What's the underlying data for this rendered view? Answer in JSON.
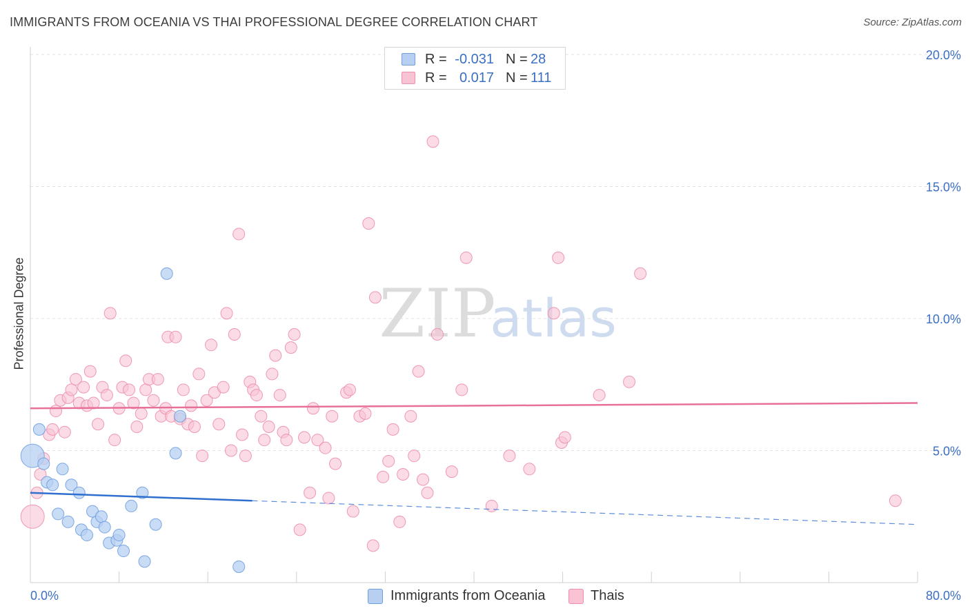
{
  "header": {
    "title": "IMMIGRANTS FROM OCEANIA VS THAI PROFESSIONAL DEGREE CORRELATION CHART",
    "source": "Source: ZipAtlas.com"
  },
  "watermark": {
    "zip": "ZIP",
    "atlas": "atlas"
  },
  "legend": {
    "r_label": "R =",
    "n_label": "N =",
    "rows": [
      {
        "name": "Immigrants from Oceania",
        "r": "-0.031",
        "n": "28",
        "fill": "#b7d0f2",
        "stroke": "#6f9fe0"
      },
      {
        "name": "Thais",
        "r": "0.017",
        "n": "111",
        "fill": "#f9c3d3",
        "stroke": "#ec8ead"
      }
    ]
  },
  "bottom_legend": {
    "items": [
      "Immigrants from Oceania",
      "Thais"
    ]
  },
  "colors": {
    "blue_fill": "#b7d0f2",
    "blue_stroke": "#6f9fe0",
    "blue_line": "#2f6fcf",
    "pink_fill": "#f9c3d3",
    "pink_stroke": "#ec8ead",
    "pink_line": "#e7709a",
    "axis_label": "#3a6fc4",
    "grid": "#e2e2e2"
  },
  "chart_data": {
    "type": "scatter",
    "title": "IMMIGRANTS FROM OCEANIA VS THAI PROFESSIONAL DEGREE CORRELATION CHART",
    "xlabel": "",
    "ylabel": "Professional Degree",
    "xlim": [
      0,
      80
    ],
    "ylim": [
      0,
      20
    ],
    "x_tick_labels": [
      {
        "value": 0,
        "label": "0.0%"
      },
      {
        "value": 80,
        "label": "80.0%"
      }
    ],
    "y_tick_labels": [
      {
        "value": 5,
        "label": "5.0%"
      },
      {
        "value": 10,
        "label": "10.0%"
      },
      {
        "value": 15,
        "label": "15.0%"
      },
      {
        "value": 20,
        "label": "20.0%"
      }
    ],
    "grid": true,
    "series": [
      {
        "name": "Immigrants from Oceania",
        "r": -0.031,
        "n": 28,
        "trend": {
          "solid": [
            [
              0,
              3.4
            ],
            [
              20,
              3.1
            ]
          ],
          "dashed": [
            [
              20,
              3.1
            ],
            [
              80,
              2.2
            ]
          ]
        },
        "points": [
          [
            0.2,
            4.8,
            1
          ],
          [
            0.8,
            5.8,
            0
          ],
          [
            1.2,
            4.5,
            0
          ],
          [
            1.5,
            3.8,
            0
          ],
          [
            2.0,
            3.7,
            0
          ],
          [
            2.5,
            2.6,
            0
          ],
          [
            2.9,
            4.3,
            0
          ],
          [
            3.4,
            2.3,
            0
          ],
          [
            3.7,
            3.7,
            0
          ],
          [
            4.4,
            3.4,
            0
          ],
          [
            4.6,
            2.0,
            0
          ],
          [
            5.1,
            1.8,
            0
          ],
          [
            5.6,
            2.7,
            0
          ],
          [
            6.0,
            2.3,
            0
          ],
          [
            6.4,
            2.5,
            0
          ],
          [
            6.7,
            2.1,
            0
          ],
          [
            7.1,
            1.5,
            0
          ],
          [
            7.8,
            1.6,
            0
          ],
          [
            8.0,
            1.8,
            0
          ],
          [
            8.4,
            1.2,
            0
          ],
          [
            9.1,
            2.9,
            0
          ],
          [
            10.1,
            3.4,
            0
          ],
          [
            10.3,
            0.8,
            0
          ],
          [
            11.3,
            2.2,
            0
          ],
          [
            12.3,
            11.7,
            0
          ],
          [
            13.1,
            4.9,
            0
          ],
          [
            13.5,
            6.3,
            0
          ],
          [
            18.8,
            0.6,
            0
          ]
        ]
      },
      {
        "name": "Thais",
        "r": 0.017,
        "n": 111,
        "trend": {
          "solid": [
            [
              0,
              6.6
            ],
            [
              80,
              6.8
            ]
          ]
        },
        "points": [
          [
            0.2,
            2.5,
            1
          ],
          [
            0.6,
            3.4,
            0
          ],
          [
            0.9,
            4.1,
            0
          ],
          [
            1.2,
            4.7,
            0
          ],
          [
            1.7,
            5.6,
            0
          ],
          [
            2.0,
            5.8,
            0
          ],
          [
            2.3,
            6.5,
            0
          ],
          [
            2.7,
            6.9,
            0
          ],
          [
            3.1,
            5.7,
            0
          ],
          [
            3.4,
            7.0,
            0
          ],
          [
            3.7,
            7.3,
            0
          ],
          [
            4.1,
            7.7,
            0
          ],
          [
            4.4,
            6.8,
            0
          ],
          [
            4.8,
            7.4,
            0
          ],
          [
            5.1,
            6.7,
            0
          ],
          [
            5.4,
            8.0,
            0
          ],
          [
            5.7,
            6.8,
            0
          ],
          [
            6.1,
            6.0,
            0
          ],
          [
            6.5,
            7.4,
            0
          ],
          [
            6.9,
            7.1,
            0
          ],
          [
            7.2,
            10.2,
            0
          ],
          [
            7.6,
            5.4,
            0
          ],
          [
            8.0,
            6.6,
            0
          ],
          [
            8.3,
            7.4,
            0
          ],
          [
            8.6,
            8.4,
            0
          ],
          [
            8.9,
            7.3,
            0
          ],
          [
            9.3,
            6.8,
            0
          ],
          [
            9.6,
            5.9,
            0
          ],
          [
            10.0,
            6.4,
            0
          ],
          [
            10.4,
            7.3,
            0
          ],
          [
            10.7,
            7.7,
            0
          ],
          [
            11.1,
            6.9,
            0
          ],
          [
            11.5,
            7.7,
            0
          ],
          [
            11.8,
            6.3,
            0
          ],
          [
            12.2,
            6.6,
            0
          ],
          [
            12.4,
            9.3,
            0
          ],
          [
            12.7,
            6.3,
            0
          ],
          [
            13.1,
            9.3,
            0
          ],
          [
            13.5,
            6.2,
            0
          ],
          [
            13.8,
            7.3,
            0
          ],
          [
            14.2,
            6.0,
            0
          ],
          [
            14.5,
            6.7,
            0
          ],
          [
            14.8,
            5.9,
            0
          ],
          [
            15.2,
            7.9,
            0
          ],
          [
            15.5,
            4.8,
            0
          ],
          [
            15.9,
            6.9,
            0
          ],
          [
            16.3,
            9.0,
            0
          ],
          [
            16.6,
            7.2,
            0
          ],
          [
            17.0,
            6.0,
            0
          ],
          [
            17.4,
            7.4,
            0
          ],
          [
            17.7,
            10.2,
            0
          ],
          [
            18.1,
            5.0,
            0
          ],
          [
            18.4,
            9.4,
            0
          ],
          [
            18.8,
            13.2,
            0
          ],
          [
            19.1,
            5.6,
            0
          ],
          [
            19.4,
            4.8,
            0
          ],
          [
            19.8,
            7.6,
            0
          ],
          [
            20.1,
            7.3,
            0
          ],
          [
            20.4,
            7.1,
            0
          ],
          [
            20.8,
            6.3,
            0
          ],
          [
            21.1,
            5.4,
            0
          ],
          [
            21.5,
            5.9,
            0
          ],
          [
            21.8,
            7.9,
            0
          ],
          [
            22.1,
            8.6,
            0
          ],
          [
            22.5,
            7.1,
            0
          ],
          [
            22.8,
            5.7,
            0
          ],
          [
            23.1,
            5.4,
            0
          ],
          [
            23.5,
            8.9,
            0
          ],
          [
            23.8,
            9.4,
            0
          ],
          [
            24.3,
            2.0,
            0
          ],
          [
            24.7,
            5.5,
            0
          ],
          [
            25.2,
            3.4,
            0
          ],
          [
            25.5,
            6.6,
            0
          ],
          [
            25.9,
            5.4,
            0
          ],
          [
            26.6,
            5.1,
            0
          ],
          [
            26.9,
            3.2,
            0
          ],
          [
            27.2,
            6.3,
            0
          ],
          [
            27.5,
            4.5,
            0
          ],
          [
            28.5,
            7.2,
            0
          ],
          [
            28.8,
            7.3,
            0
          ],
          [
            29.1,
            2.7,
            0
          ],
          [
            29.7,
            6.3,
            0
          ],
          [
            30.2,
            6.4,
            0
          ],
          [
            30.5,
            13.6,
            0
          ],
          [
            30.9,
            1.4,
            0
          ],
          [
            31.1,
            10.8,
            0
          ],
          [
            31.8,
            4.0,
            0
          ],
          [
            32.3,
            4.6,
            0
          ],
          [
            32.7,
            5.8,
            0
          ],
          [
            33.3,
            2.3,
            0
          ],
          [
            33.6,
            4.1,
            0
          ],
          [
            34.3,
            6.3,
            0
          ],
          [
            34.6,
            4.8,
            0
          ],
          [
            35.0,
            8.0,
            0
          ],
          [
            35.4,
            3.9,
            0
          ],
          [
            35.8,
            3.4,
            0
          ],
          [
            36.3,
            16.7,
            0
          ],
          [
            36.7,
            9.4,
            0
          ],
          [
            38.0,
            4.2,
            0
          ],
          [
            38.9,
            7.3,
            0
          ],
          [
            39.3,
            12.3,
            0
          ],
          [
            41.6,
            2.9,
            0
          ],
          [
            43.2,
            4.8,
            0
          ],
          [
            45.0,
            4.3,
            0
          ],
          [
            47.2,
            10.2,
            0
          ],
          [
            47.6,
            12.3,
            0
          ],
          [
            47.9,
            5.3,
            0
          ],
          [
            48.2,
            5.5,
            0
          ],
          [
            51.3,
            7.1,
            0
          ],
          [
            54.0,
            7.6,
            0
          ],
          [
            55.0,
            11.7,
            0
          ],
          [
            78.0,
            3.1,
            0
          ]
        ]
      }
    ]
  }
}
